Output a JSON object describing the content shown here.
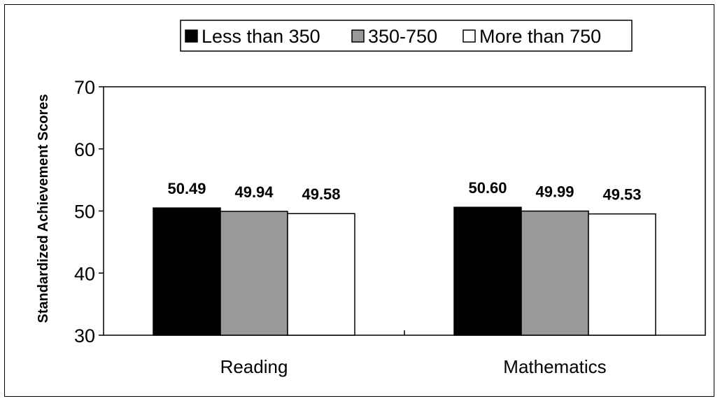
{
  "chart_data": {
    "type": "bar",
    "title": "",
    "xlabel": "",
    "ylabel": "Standardized Achievement Scores",
    "ylim": [
      30,
      70
    ],
    "yticks": [
      30,
      40,
      50,
      60,
      70
    ],
    "grid": false,
    "legend_position": "top",
    "categories": [
      "Reading",
      "Mathematics"
    ],
    "series": [
      {
        "name": "Less than 350",
        "values": [
          50.49,
          50.6
        ],
        "labels": [
          "50.49",
          "50.60"
        ],
        "color": "#000000"
      },
      {
        "name": "350-750",
        "values": [
          49.94,
          49.99
        ],
        "labels": [
          "49.94",
          "49.99"
        ],
        "color": "#999999"
      },
      {
        "name": "More than 750",
        "values": [
          49.58,
          49.53
        ],
        "labels": [
          "49.58",
          "49.53"
        ],
        "color": "#ffffff"
      }
    ]
  }
}
